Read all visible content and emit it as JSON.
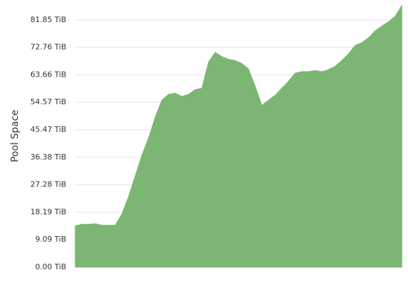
{
  "chart_data": {
    "type": "area",
    "ylabel": "Pool Space",
    "color": "#7cb673",
    "grid": true,
    "values": [
      13.7,
      14.2,
      14.2,
      14.4,
      13.9,
      13.9,
      13.9,
      17.6,
      23.3,
      30.2,
      37.0,
      42.7,
      49.6,
      55.3,
      57.2,
      57.6,
      56.5,
      57.2,
      58.8,
      59.2,
      67.9,
      71.1,
      69.7,
      68.8,
      68.4,
      67.4,
      65.6,
      59.9,
      53.5,
      55.3,
      56.9,
      59.2,
      61.5,
      64.2,
      64.7,
      64.7,
      65.1,
      64.7,
      65.4,
      66.5,
      68.4,
      70.6,
      73.4,
      74.3,
      75.9,
      78.2,
      79.8,
      81.2,
      83.0,
      86.6
    ],
    "ylim": [
      0,
      86.6
    ],
    "yticks": [
      {
        "value": 0,
        "label": "0.00 TiB"
      },
      {
        "value": 9.09,
        "label": "9.09 TiB"
      },
      {
        "value": 18.19,
        "label": "18.19 TiB"
      },
      {
        "value": 27.28,
        "label": "27.28 TiB"
      },
      {
        "value": 36.38,
        "label": "36.38 TiB"
      },
      {
        "value": 45.47,
        "label": "45.47 TiB"
      },
      {
        "value": 54.57,
        "label": "54.57 TiB"
      },
      {
        "value": 63.66,
        "label": "63.66 TiB"
      },
      {
        "value": 72.76,
        "label": "72.76 TiB"
      },
      {
        "value": 81.85,
        "label": "81.85 TiB"
      }
    ]
  }
}
